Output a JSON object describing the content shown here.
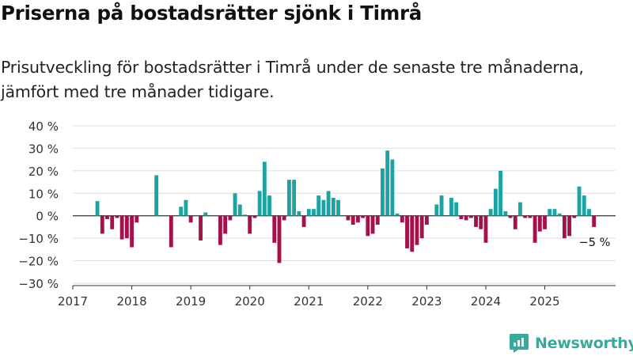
{
  "title": "Priserna på bostadsrätter sjönk i Timrå",
  "subtitle": "Prisutveckling för bostadsrätter i Timrå under de senaste tre månaderna, jämfört med tre månader tidigare.",
  "brand": "Newsworthy",
  "colors": {
    "positive": "#1ca3a3",
    "negative": "#a5114a",
    "grid": "#dddddd",
    "axis": "#333333",
    "brand": "#3aa89a"
  },
  "chart_data": {
    "type": "bar",
    "title": "Priserna på bostadsrätter sjönk i Timrå",
    "ylabel": "",
    "xlabel": "",
    "ylim": [
      -30,
      40
    ],
    "yticks": [
      40,
      30,
      20,
      10,
      0,
      -10,
      -20,
      -30
    ],
    "ytick_labels": [
      "40 %",
      "30 %",
      "20 %",
      "10 %",
      "0 %",
      "−10 %",
      "−20 %",
      "−30 %"
    ],
    "xlim": [
      2017,
      2026.2
    ],
    "xticks": [
      "2017",
      "2018",
      "2019",
      "2020",
      "2021",
      "2022",
      "2023",
      "2024",
      "2025"
    ],
    "annotation": {
      "text": "−5 %",
      "target_index": 101
    },
    "start": "2017-06",
    "values": [
      6.5,
      -8,
      -1.5,
      -6,
      -1,
      -10.5,
      -10,
      -14,
      -3,
      0,
      0,
      0,
      18,
      0,
      0,
      -14,
      0,
      4,
      7,
      -3,
      0,
      -11,
      1.5,
      0,
      0,
      -13,
      -8,
      -2,
      10,
      5,
      0.5,
      -8,
      -1,
      11,
      24,
      9,
      -12,
      -21,
      -2,
      16,
      16,
      2,
      -5,
      3,
      3,
      9,
      7,
      11,
      8,
      7,
      0,
      -2,
      -4,
      -3,
      -1,
      -9,
      -8,
      -4,
      21,
      29,
      25,
      1,
      -3,
      -14.5,
      -16,
      -13,
      -10,
      -4,
      0,
      5,
      9,
      0,
      8,
      6,
      -1.5,
      -2,
      -1,
      -5,
      -6,
      -12,
      3,
      12,
      20,
      2,
      -1,
      -6,
      6,
      -1,
      -1,
      -12,
      -7,
      -6,
      3,
      3,
      1,
      -10,
      -9,
      -1,
      13,
      9,
      3,
      -5
    ]
  }
}
